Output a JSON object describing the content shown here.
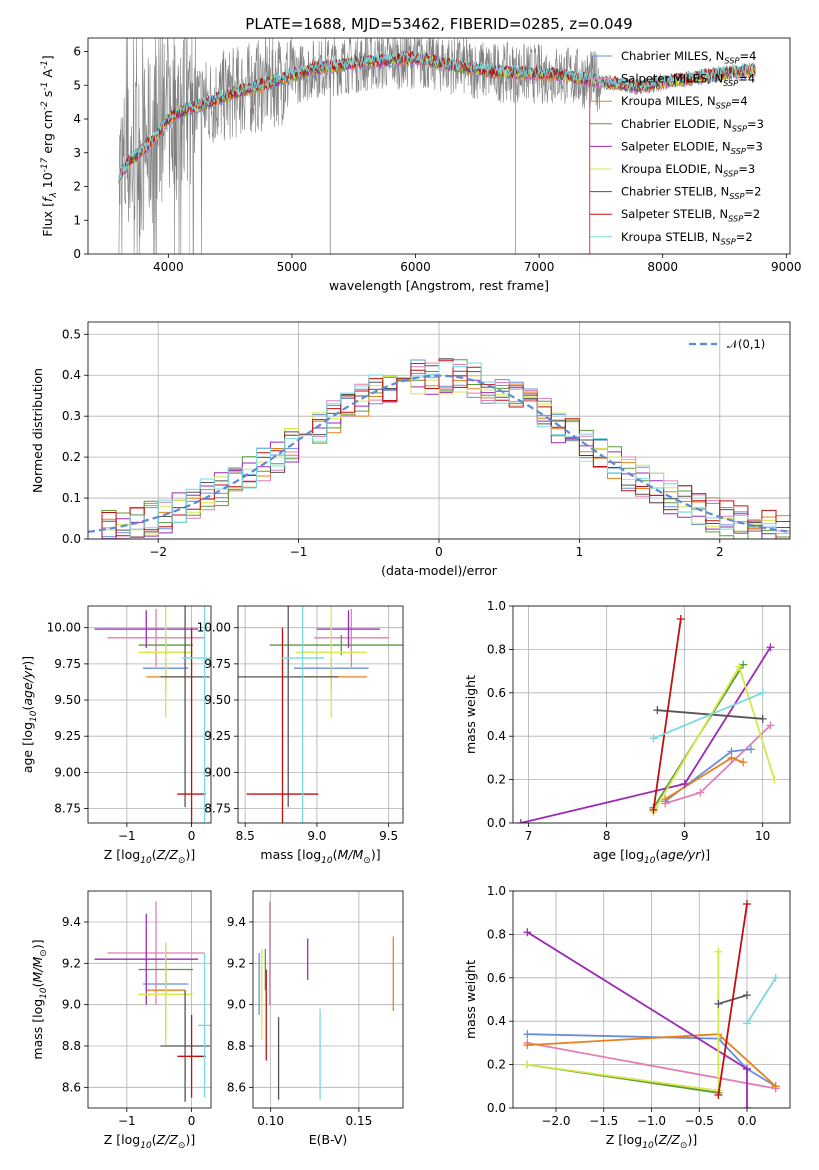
{
  "series": [
    {
      "name": "Chabrier MILES, N$_{SSP}$=4",
      "color": "#6a8fd8"
    },
    {
      "name": "Salpeter MILES, N$_{SSP}$=4",
      "color": "#e27fb5"
    },
    {
      "name": "Kroupa MILES, N$_{SSP}$=4",
      "color": "#e8801f"
    },
    {
      "name": "Chabrier ELODIE, N$_{SSP}$=3",
      "color": "#5a9c3c"
    },
    {
      "name": "Salpeter ELODIE, N$_{SSP}$=3",
      "color": "#9b2bb3"
    },
    {
      "name": "Kroupa ELODIE, N$_{SSP}$=3",
      "color": "#d6e84a"
    },
    {
      "name": "Chabrier STELIB, N$_{SSP}$=2",
      "color": "#555555"
    },
    {
      "name": "Salpeter STELIB, N$_{SSP}$=2",
      "color": "#c01010"
    },
    {
      "name": "Kroupa STELIB, N$_{SSP}$=2",
      "color": "#7ad8df"
    }
  ],
  "chart_data": [
    {
      "id": "spectrum",
      "type": "line",
      "title": "PLATE=1688, MJD=53462, FIBERID=0285, z=0.049",
      "xlabel": "wavelength [Angstrom, rest frame]",
      "ylabel": "Flux [$f_\\lambda 10^{-17}$ erg cm$^{-2}$ s$^{-1}$ A$^{-1}$]",
      "xlim": [
        3350,
        9030
      ],
      "ylim": [
        0,
        6.4
      ],
      "xticks": [
        4000,
        5000,
        6000,
        7000,
        8000,
        9000
      ],
      "yticks": [
        0,
        1,
        2,
        3,
        4,
        5,
        6
      ],
      "data_color": "#808080",
      "data_range": [
        3600,
        8750
      ],
      "model_range": [
        3600,
        8750
      ],
      "continuum": {
        "x": [
          3600,
          3700,
          3800,
          3900,
          4000,
          4100,
          4200,
          4300,
          4400,
          4600,
          4800,
          5000,
          5200,
          5500,
          5800,
          6000,
          6300,
          6600,
          6900,
          7200,
          7500,
          7800,
          8100,
          8400,
          8750
        ],
        "y": [
          2.3,
          2.8,
          3.1,
          3.5,
          4.0,
          4.2,
          4.35,
          4.45,
          4.6,
          4.85,
          5.05,
          5.3,
          5.5,
          5.65,
          5.75,
          5.8,
          5.6,
          5.4,
          5.35,
          5.3,
          5.1,
          4.95,
          5.15,
          5.3,
          5.45
        ]
      },
      "legend_position": "upper right"
    },
    {
      "id": "residuals",
      "type": "histogram",
      "xlabel": "(data-model)/error",
      "ylabel": "Normed distribution",
      "xlim": [
        -2.5,
        2.5
      ],
      "ylim": [
        0,
        0.53
      ],
      "xticks": [
        -2,
        -1,
        0,
        1,
        2
      ],
      "yticks": [
        0.0,
        0.1,
        0.2,
        0.3,
        0.4,
        0.5
      ],
      "reference_label": "$\\mathcal{N}(0,1)$",
      "reference_color": "#5b8bd6",
      "legend_position": "upper right"
    },
    {
      "id": "age_vs_Z",
      "type": "errorbar",
      "xlabel": "Z [log$_{10}$($Z/Z_\\odot$)]",
      "ylabel": "age  [log$_{10}$($age/yr$)]",
      "xlim": [
        -1.6,
        0.3
      ],
      "ylim": [
        8.65,
        10.15
      ],
      "xticks": [
        -1,
        0
      ],
      "yticks": [
        8.75,
        9.0,
        9.25,
        9.5,
        9.75,
        10.0
      ],
      "points": [
        {
          "x": -0.4,
          "y": 9.72,
          "xerr": 0.35,
          "yerr": 0.07,
          "c": 0
        },
        {
          "x": -0.55,
          "y": 9.93,
          "xerr": 0.75,
          "yerr": 0.2,
          "c": 1
        },
        {
          "x": -0.4,
          "y": 9.66,
          "xerr": 0.3,
          "yerr": 0.1,
          "c": 2
        },
        {
          "x": -0.4,
          "y": 9.88,
          "xerr": 0.42,
          "yerr": 0.07,
          "c": 3
        },
        {
          "x": -0.7,
          "y": 9.99,
          "xerr": 0.8,
          "yerr": 0.13,
          "c": 4
        },
        {
          "x": -0.4,
          "y": 9.83,
          "xerr": 0.42,
          "yerr": 0.45,
          "c": 5
        },
        {
          "x": -0.1,
          "y": 9.66,
          "xerr": 0.38,
          "yerr": 0.9,
          "c": 6
        },
        {
          "x": 0.0,
          "y": 8.85,
          "xerr": 0.22,
          "yerr": 1.15,
          "c": 7
        },
        {
          "x": 0.2,
          "y": 9.79,
          "xerr": 0.35,
          "yerr": 1.15,
          "c": 8
        }
      ]
    },
    {
      "id": "age_vs_mass",
      "type": "errorbar",
      "xlabel": "mass [log$_{10}$($M/M_\\odot$)]",
      "ylabel": "",
      "xlim": [
        8.45,
        9.6
      ],
      "ylim": [
        8.65,
        10.15
      ],
      "xticks": [
        8.5,
        9.0,
        9.5
      ],
      "yticks": [
        8.75,
        9.0,
        9.25,
        9.5,
        9.75,
        10.0
      ],
      "points": [
        {
          "x": 9.1,
          "y": 9.72,
          "xerr": 0.26,
          "yerr": 0.07,
          "c": 0
        },
        {
          "x": 9.24,
          "y": 9.93,
          "xerr": 0.26,
          "yerr": 0.2,
          "c": 1
        },
        {
          "x": 9.1,
          "y": 9.66,
          "xerr": 0.25,
          "yerr": 0.1,
          "c": 2
        },
        {
          "x": 9.17,
          "y": 9.88,
          "xerr": 0.5,
          "yerr": 0.07,
          "c": 3
        },
        {
          "x": 9.22,
          "y": 9.99,
          "xerr": 0.22,
          "yerr": 0.13,
          "c": 4
        },
        {
          "x": 9.1,
          "y": 9.83,
          "xerr": 0.25,
          "yerr": 0.45,
          "c": 5
        },
        {
          "x": 8.8,
          "y": 9.66,
          "xerr": 0.35,
          "yerr": 0.9,
          "c": 6
        },
        {
          "x": 8.76,
          "y": 8.85,
          "xerr": 0.25,
          "yerr": 1.15,
          "c": 7
        },
        {
          "x": 8.9,
          "y": 9.79,
          "xerr": 0.15,
          "yerr": 1.15,
          "c": 8
        }
      ]
    },
    {
      "id": "mass_vs_Z",
      "type": "errorbar",
      "xlabel": "Z [log$_{10}$($Z/Z_\\odot$)]",
      "ylabel": "mass [log$_{10}$($M/M_\\odot$)]",
      "xlim": [
        -1.6,
        0.3
      ],
      "ylim": [
        8.5,
        9.55
      ],
      "xticks": [
        -1,
        0
      ],
      "yticks": [
        8.6,
        8.8,
        9.0,
        9.2,
        9.4
      ],
      "points": [
        {
          "x": -0.4,
          "y": 9.1,
          "xerr": 0.35,
          "yerr": 0.08,
          "c": 0
        },
        {
          "x": -0.55,
          "y": 9.25,
          "xerr": 0.75,
          "yerr": 0.25,
          "c": 1
        },
        {
          "x": -0.4,
          "y": 9.07,
          "xerr": 0.3,
          "yerr": 0.23,
          "c": 2
        },
        {
          "x": -0.4,
          "y": 9.17,
          "xerr": 0.42,
          "yerr": 0.09,
          "c": 3
        },
        {
          "x": -0.7,
          "y": 9.22,
          "xerr": 0.8,
          "yerr": 0.22,
          "c": 4
        },
        {
          "x": -0.4,
          "y": 9.05,
          "xerr": 0.42,
          "yerr": 0.25,
          "c": 5
        },
        {
          "x": -0.1,
          "y": 8.8,
          "xerr": 0.38,
          "yerr": 0.27,
          "c": 6
        },
        {
          "x": 0.0,
          "y": 8.75,
          "xerr": 0.22,
          "yerr": 0.2,
          "c": 7
        },
        {
          "x": 0.2,
          "y": 8.9,
          "xerr": 0.1,
          "yerr": 0.35,
          "c": 8
        }
      ]
    },
    {
      "id": "mass_vs_ebv",
      "type": "errorbar",
      "xlabel": "E(B-V)",
      "ylabel": "",
      "xlim": [
        0.09,
        0.175
      ],
      "ylim": [
        8.5,
        9.55
      ],
      "xticks": [
        0.1,
        0.15
      ],
      "yticks": [
        8.6,
        8.8,
        9.0,
        9.2,
        9.4
      ],
      "points": [
        {
          "x": 0.0935,
          "y": 9.1,
          "xerr": 0,
          "yerr": 0.15,
          "c": 0
        },
        {
          "x": 0.0995,
          "y": 9.25,
          "xerr": 0,
          "yerr": 0.25,
          "c": 1
        },
        {
          "x": 0.1695,
          "y": 9.15,
          "xerr": 0,
          "yerr": 0.18,
          "c": 2
        },
        {
          "x": 0.097,
          "y": 9.17,
          "xerr": 0,
          "yerr": 0.1,
          "c": 3
        },
        {
          "x": 0.121,
          "y": 9.22,
          "xerr": 0,
          "yerr": 0.1,
          "c": 4
        },
        {
          "x": 0.095,
          "y": 9.05,
          "xerr": 0,
          "yerr": 0.22,
          "c": 5
        },
        {
          "x": 0.1045,
          "y": 8.74,
          "xerr": 0,
          "yerr": 0.2,
          "c": 6
        },
        {
          "x": 0.0975,
          "y": 8.95,
          "xerr": 0,
          "yerr": 0.22,
          "c": 7
        },
        {
          "x": 0.128,
          "y": 8.76,
          "xerr": 0,
          "yerr": 0.22,
          "c": 8
        }
      ]
    },
    {
      "id": "weight_vs_age",
      "type": "line",
      "xlabel": "age  [log$_{10}$($age/yr$)]",
      "ylabel": "mass weight",
      "xlim": [
        6.8,
        10.35
      ],
      "ylim": [
        0,
        1.0
      ],
      "xticks": [
        7,
        8,
        9,
        10
      ],
      "yticks": [
        0.0,
        0.2,
        0.4,
        0.6,
        0.8,
        1.0
      ],
      "series_points": [
        {
          "c": 0,
          "x": [
            8.75,
            9.6,
            9.85
          ],
          "y": [
            0.1,
            0.33,
            0.34
          ]
        },
        {
          "c": 1,
          "x": [
            8.75,
            9.2,
            10.1
          ],
          "y": [
            0.09,
            0.14,
            0.45
          ]
        },
        {
          "c": 2,
          "x": [
            8.75,
            9.6,
            9.75
          ],
          "y": [
            0.11,
            0.3,
            0.28
          ]
        },
        {
          "c": 3,
          "x": [
            8.6,
            9.75
          ],
          "y": [
            0.07,
            0.73
          ]
        },
        {
          "c": 4,
          "x": [
            6.9,
            9.0,
            10.1
          ],
          "y": [
            0.0,
            0.18,
            0.81
          ]
        },
        {
          "c": 5,
          "x": [
            8.6,
            9.7,
            10.15
          ],
          "y": [
            0.05,
            0.72,
            0.2
          ]
        },
        {
          "c": 6,
          "x": [
            8.65,
            10.0
          ],
          "y": [
            0.52,
            0.48
          ]
        },
        {
          "c": 7,
          "x": [
            8.6,
            8.95
          ],
          "y": [
            0.06,
            0.94
          ]
        },
        {
          "c": 8,
          "x": [
            8.6,
            10.0
          ],
          "y": [
            0.39,
            0.6
          ]
        }
      ]
    },
    {
      "id": "weight_vs_Z",
      "type": "line",
      "xlabel": "Z [log$_{10}$($Z/Z_\\odot$)]",
      "ylabel": "mass weight",
      "xlim": [
        -2.45,
        0.45
      ],
      "ylim": [
        0,
        1.0
      ],
      "xticks": [
        -2.0,
        -1.5,
        -1.0,
        -0.5,
        0.0
      ],
      "series_points": [
        {
          "c": 0,
          "x": [
            -2.3,
            -0.3,
            0.0,
            0.3
          ],
          "y": [
            0.34,
            0.32,
            0.18,
            0.1
          ]
        },
        {
          "c": 1,
          "x": [
            -2.3,
            0.3
          ],
          "y": [
            0.3,
            0.09
          ]
        },
        {
          "c": 2,
          "x": [
            -2.3,
            -0.3,
            0.3
          ],
          "y": [
            0.29,
            0.34,
            0.1
          ]
        },
        {
          "c": 3,
          "x": [
            -2.3,
            -0.3
          ],
          "y": [
            0.2,
            0.07
          ]
        },
        {
          "c": 4,
          "x": [
            -2.3,
            0.0,
            0.0
          ],
          "y": [
            0.81,
            0.18,
            0.0
          ]
        },
        {
          "c": 5,
          "x": [
            -2.3,
            -0.3,
            -0.3
          ],
          "y": [
            0.2,
            0.08,
            0.72
          ]
        },
        {
          "c": 6,
          "x": [
            -0.3,
            0.0
          ],
          "y": [
            0.48,
            0.52
          ]
        },
        {
          "c": 7,
          "x": [
            -0.3,
            0.0
          ],
          "y": [
            0.06,
            0.94
          ]
        },
        {
          "c": 8,
          "x": [
            0.0,
            0.3
          ],
          "y": [
            0.39,
            0.6
          ]
        }
      ],
      "yticks": [
        0.0,
        0.2,
        0.4,
        0.6,
        0.8,
        1.0
      ]
    }
  ]
}
